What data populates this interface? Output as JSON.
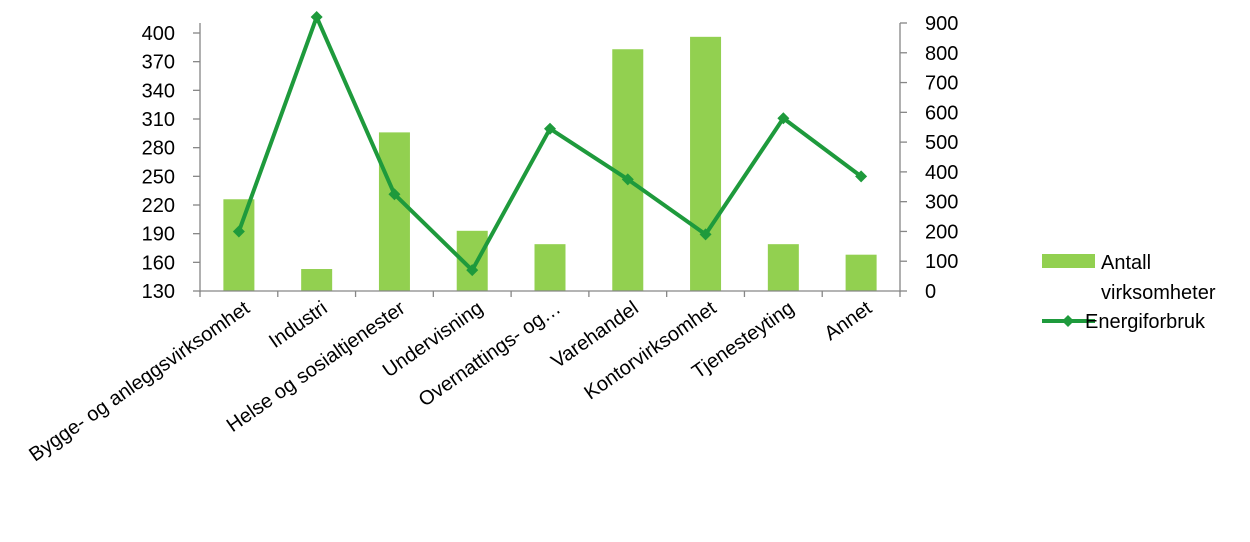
{
  "chart_data": {
    "type": "bar+line",
    "categories": [
      "Bygge- og anleggsvirksomhet",
      "Industri",
      "Helse og sosialtjenester",
      "Undervisning",
      "Overnattings- og…",
      "Varehandel",
      "Kontorvirksomhet",
      "Tjenesteyting",
      "Annet"
    ],
    "series": [
      {
        "name_lines": [
          "Antall",
          "virksomheter"
        ],
        "type": "bar",
        "axis": "left",
        "color": "#92d050",
        "values": [
          226,
          153,
          296,
          193,
          179,
          383,
          396,
          179,
          168
        ]
      },
      {
        "name_lines": [
          "Energiforbruk"
        ],
        "type": "line",
        "axis": "right",
        "color": "#1e9a3c",
        "values": [
          200,
          920,
          325,
          70,
          545,
          375,
          190,
          580,
          385
        ]
      }
    ],
    "y_left": {
      "min": 130,
      "max": 400,
      "ticks": [
        130,
        160,
        190,
        220,
        250,
        280,
        310,
        340,
        370,
        400
      ]
    },
    "y_right": {
      "min": 0,
      "max": 900,
      "ticks": [
        0,
        100,
        200,
        300,
        400,
        500,
        600,
        700,
        800,
        900
      ]
    },
    "grid": false,
    "legend_position": "right"
  }
}
